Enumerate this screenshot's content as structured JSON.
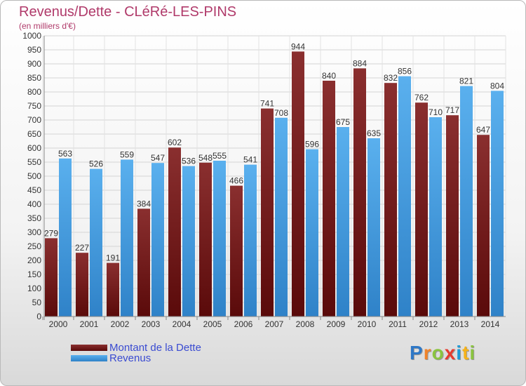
{
  "header": {
    "title": "Revenus/Dette - CLéRé-LES-PINS",
    "subtitle": "(en milliers d'€)"
  },
  "legend": {
    "debt_label": "Montant de la Dette",
    "revenue_label": "Revenus"
  },
  "brand": {
    "logo_text": "Proxiti"
  },
  "colors": {
    "debt_top": "#8a2f2f",
    "debt_bottom": "#5a0a0a",
    "revenue_top": "#5ab0ee",
    "revenue_bottom": "#2f82c8",
    "title": "#b03a6a"
  },
  "chart_data": {
    "type": "bar",
    "categories": [
      "2000",
      "2001",
      "2002",
      "2003",
      "2004",
      "2005",
      "2006",
      "2007",
      "2008",
      "2009",
      "2010",
      "2011",
      "2012",
      "2013",
      "2014"
    ],
    "series": [
      {
        "name": "Montant de la Dette",
        "values": [
          279,
          227,
          191,
          384,
          602,
          548,
          466,
          741,
          944,
          840,
          884,
          832,
          762,
          717,
          647
        ]
      },
      {
        "name": "Revenus",
        "values": [
          563,
          526,
          559,
          547,
          536,
          555,
          541,
          708,
          596,
          675,
          635,
          856,
          710,
          821,
          804
        ]
      }
    ],
    "ylim": [
      0,
      1000
    ],
    "ytick_step": 50,
    "grid": true,
    "legend_position": "bottom-left"
  }
}
